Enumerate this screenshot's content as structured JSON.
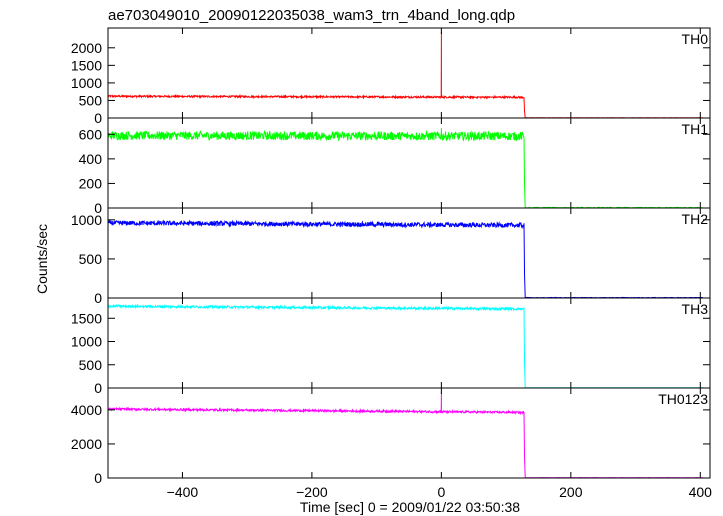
{
  "chart_data": {
    "type": "line",
    "title": "ae703049010_20090122035038_wam3_trn_4band_long.qdp",
    "xlabel": "Time [sec] 0 = 2009/01/22 03:50:38",
    "ylabel": "Counts/sec",
    "xlim": [
      -515,
      415
    ],
    "xticks": [
      -400,
      -200,
      0,
      200,
      400
    ],
    "xticklabels": [
      "−400",
      "−200",
      "0",
      "200",
      "400"
    ],
    "cutoff_time": 128,
    "panels": [
      {
        "name": "TH0",
        "color": "#ff0000",
        "ylim": [
          0,
          2450
        ],
        "yticks": [
          0,
          500,
          1000,
          1500,
          2000
        ],
        "base_start": 620,
        "base_end": 590,
        "noise": 25,
        "post_level": 5,
        "spikes": [
          {
            "x": 0,
            "y": 2450
          }
        ]
      },
      {
        "name": "TH1",
        "color": "#00ff00",
        "ylim": [
          0,
          700
        ],
        "yticks": [
          0,
          200,
          400,
          600
        ],
        "base_start": 590,
        "base_end": 585,
        "noise": 35,
        "post_level": 3,
        "spikes": [
          {
            "x": 0,
            "y": 650
          }
        ]
      },
      {
        "name": "TH2",
        "color": "#0000ff",
        "ylim": [
          0,
          1100
        ],
        "yticks": [
          0,
          500,
          1000
        ],
        "base_start": 960,
        "base_end": 930,
        "noise": 30,
        "post_level": 5,
        "spikes": []
      },
      {
        "name": "TH3",
        "color": "#00ffff",
        "ylim": [
          0,
          1850
        ],
        "yticks": [
          0,
          500,
          1000,
          1500
        ],
        "base_start": 1760,
        "base_end": 1700,
        "noise": 25,
        "post_level": 5,
        "spikes": []
      },
      {
        "name": "TH0123",
        "color": "#ff00ff",
        "ylim": [
          0,
          5050
        ],
        "yticks": [
          0,
          2000,
          4000
        ],
        "base_start": 4050,
        "base_end": 3850,
        "noise": 60,
        "post_level": 20,
        "spikes": [
          {
            "x": 0,
            "y": 5000
          }
        ]
      }
    ]
  }
}
